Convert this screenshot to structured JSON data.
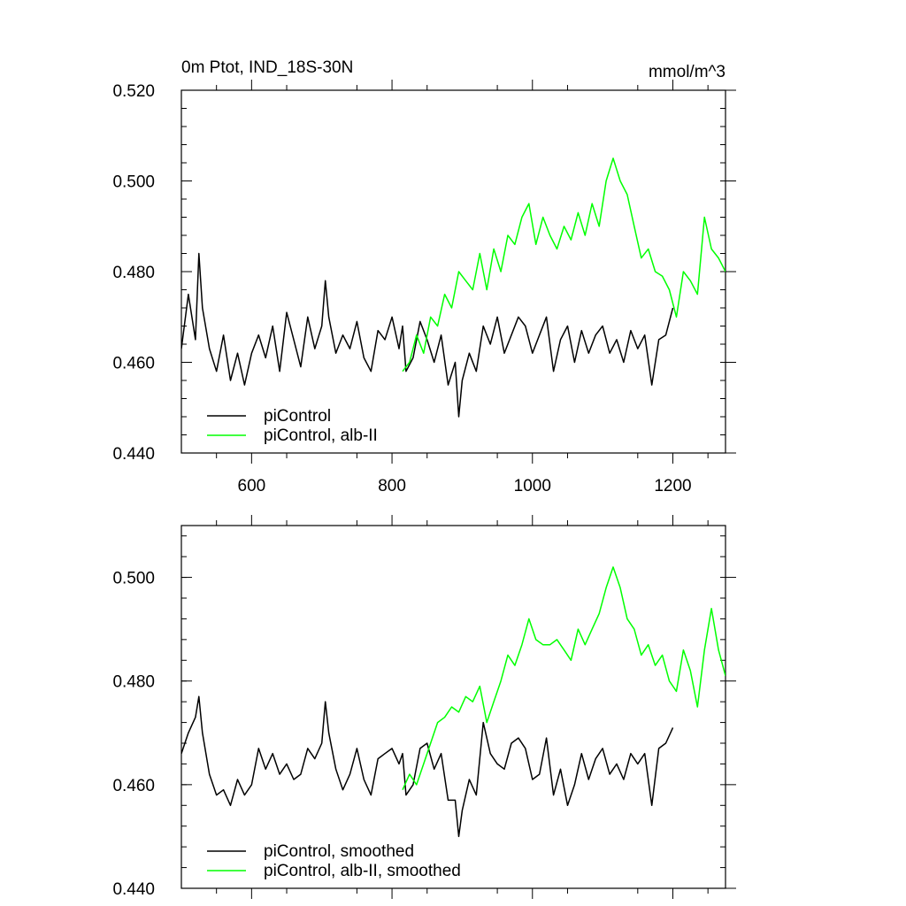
{
  "chart_data": [
    {
      "type": "line",
      "title_left": "0m Ptot, IND_18S-30N",
      "title_right": "mmol/m^3",
      "xlim": [
        500,
        1275
      ],
      "ylim": [
        0.44,
        0.52
      ],
      "xticks": [
        600,
        800,
        1000,
        1200
      ],
      "xtick_labels": [
        "600",
        "800",
        "1000",
        "1200"
      ],
      "yticks": [
        0.44,
        0.46,
        0.48,
        0.5,
        0.52
      ],
      "ytick_labels": [
        "0.440",
        "0.460",
        "0.480",
        "0.500",
        "0.520"
      ],
      "grid": false,
      "legend_position": "bottom-left",
      "series": [
        {
          "name": "piControl",
          "color": "#000000",
          "x": [
            500,
            510,
            520,
            525,
            530,
            540,
            550,
            560,
            570,
            580,
            590,
            600,
            610,
            620,
            630,
            640,
            650,
            660,
            670,
            680,
            690,
            700,
            705,
            710,
            720,
            730,
            740,
            750,
            760,
            770,
            780,
            790,
            800,
            810,
            815,
            820,
            830,
            840,
            850,
            860,
            870,
            880,
            890,
            895,
            900,
            910,
            920,
            930,
            940,
            950,
            960,
            970,
            980,
            990,
            1000,
            1010,
            1020,
            1030,
            1040,
            1050,
            1060,
            1070,
            1080,
            1090,
            1100,
            1110,
            1120,
            1130,
            1140,
            1150,
            1160,
            1170,
            1180,
            1190,
            1200
          ],
          "values": [
            0.463,
            0.475,
            0.465,
            0.484,
            0.472,
            0.463,
            0.458,
            0.466,
            0.456,
            0.462,
            0.455,
            0.462,
            0.466,
            0.461,
            0.468,
            0.458,
            0.471,
            0.465,
            0.459,
            0.47,
            0.463,
            0.468,
            0.478,
            0.47,
            0.462,
            0.466,
            0.463,
            0.469,
            0.461,
            0.458,
            0.467,
            0.465,
            0.47,
            0.463,
            0.468,
            0.458,
            0.461,
            0.469,
            0.465,
            0.46,
            0.466,
            0.455,
            0.46,
            0.448,
            0.456,
            0.462,
            0.458,
            0.468,
            0.464,
            0.47,
            0.462,
            0.466,
            0.47,
            0.468,
            0.462,
            0.466,
            0.47,
            0.458,
            0.465,
            0.468,
            0.46,
            0.467,
            0.462,
            0.466,
            0.468,
            0.462,
            0.465,
            0.46,
            0.467,
            0.463,
            0.466,
            0.455,
            0.465,
            0.466,
            0.472
          ]
        },
        {
          "name": "piControl, alb-II",
          "color": "#00ff00",
          "x": [
            815,
            825,
            835,
            845,
            855,
            865,
            875,
            885,
            895,
            905,
            915,
            925,
            935,
            945,
            955,
            965,
            975,
            985,
            995,
            1005,
            1015,
            1025,
            1035,
            1045,
            1055,
            1065,
            1075,
            1085,
            1095,
            1105,
            1115,
            1125,
            1135,
            1145,
            1155,
            1165,
            1175,
            1185,
            1195,
            1205,
            1215,
            1225,
            1235,
            1245,
            1255,
            1265,
            1275
          ],
          "values": [
            0.458,
            0.46,
            0.466,
            0.462,
            0.47,
            0.468,
            0.475,
            0.472,
            0.48,
            0.478,
            0.476,
            0.484,
            0.476,
            0.485,
            0.48,
            0.488,
            0.486,
            0.492,
            0.495,
            0.486,
            0.492,
            0.488,
            0.485,
            0.49,
            0.487,
            0.493,
            0.488,
            0.495,
            0.49,
            0.5,
            0.505,
            0.5,
            0.497,
            0.49,
            0.483,
            0.485,
            0.48,
            0.479,
            0.476,
            0.47,
            0.48,
            0.478,
            0.475,
            0.492,
            0.485,
            0.483,
            0.48
          ]
        }
      ]
    },
    {
      "type": "line",
      "xlim": [
        500,
        1275
      ],
      "ylim": [
        0.44,
        0.51
      ],
      "xticks": [
        600,
        800,
        1000,
        1200
      ],
      "yticks": [
        0.44,
        0.46,
        0.48,
        0.5
      ],
      "ytick_labels": [
        "0.440",
        "0.460",
        "0.480",
        "0.500"
      ],
      "grid": false,
      "legend_position": "bottom-left",
      "series": [
        {
          "name": "piControl, smoothed",
          "color": "#000000",
          "x": [
            500,
            510,
            520,
            525,
            530,
            540,
            550,
            560,
            570,
            580,
            590,
            600,
            610,
            620,
            630,
            640,
            650,
            660,
            670,
            680,
            690,
            700,
            705,
            710,
            720,
            730,
            740,
            750,
            760,
            770,
            780,
            790,
            800,
            810,
            815,
            820,
            830,
            840,
            850,
            860,
            870,
            880,
            890,
            895,
            900,
            910,
            920,
            930,
            940,
            950,
            960,
            970,
            980,
            990,
            1000,
            1010,
            1020,
            1030,
            1040,
            1050,
            1060,
            1070,
            1080,
            1090,
            1100,
            1110,
            1120,
            1130,
            1140,
            1150,
            1160,
            1170,
            1180,
            1190,
            1200
          ],
          "values": [
            0.466,
            0.47,
            0.473,
            0.477,
            0.47,
            0.462,
            0.458,
            0.459,
            0.456,
            0.461,
            0.458,
            0.46,
            0.467,
            0.463,
            0.466,
            0.462,
            0.464,
            0.461,
            0.462,
            0.467,
            0.465,
            0.468,
            0.476,
            0.47,
            0.463,
            0.459,
            0.462,
            0.467,
            0.461,
            0.458,
            0.465,
            0.466,
            0.467,
            0.464,
            0.466,
            0.458,
            0.46,
            0.467,
            0.468,
            0.463,
            0.466,
            0.457,
            0.457,
            0.45,
            0.455,
            0.461,
            0.458,
            0.472,
            0.466,
            0.464,
            0.463,
            0.468,
            0.469,
            0.467,
            0.461,
            0.462,
            0.469,
            0.458,
            0.463,
            0.456,
            0.46,
            0.466,
            0.461,
            0.465,
            0.467,
            0.462,
            0.464,
            0.461,
            0.466,
            0.464,
            0.466,
            0.456,
            0.467,
            0.468,
            0.471
          ]
        },
        {
          "name": "piControl, alb-II, smoothed",
          "color": "#00ff00",
          "x": [
            815,
            825,
            835,
            845,
            855,
            865,
            875,
            885,
            895,
            905,
            915,
            925,
            935,
            945,
            955,
            965,
            975,
            985,
            995,
            1005,
            1015,
            1025,
            1035,
            1045,
            1055,
            1065,
            1075,
            1085,
            1095,
            1105,
            1115,
            1125,
            1135,
            1145,
            1155,
            1165,
            1175,
            1185,
            1195,
            1205,
            1215,
            1225,
            1235,
            1245,
            1255,
            1265,
            1275
          ],
          "values": [
            0.459,
            0.462,
            0.46,
            0.464,
            0.468,
            0.472,
            0.473,
            0.475,
            0.474,
            0.477,
            0.476,
            0.479,
            0.472,
            0.476,
            0.48,
            0.485,
            0.483,
            0.487,
            0.492,
            0.488,
            0.487,
            0.487,
            0.488,
            0.486,
            0.484,
            0.49,
            0.487,
            0.49,
            0.493,
            0.498,
            0.502,
            0.498,
            0.492,
            0.49,
            0.485,
            0.487,
            0.483,
            0.485,
            0.48,
            0.478,
            0.486,
            0.482,
            0.475,
            0.486,
            0.494,
            0.486,
            0.481
          ]
        }
      ]
    }
  ]
}
